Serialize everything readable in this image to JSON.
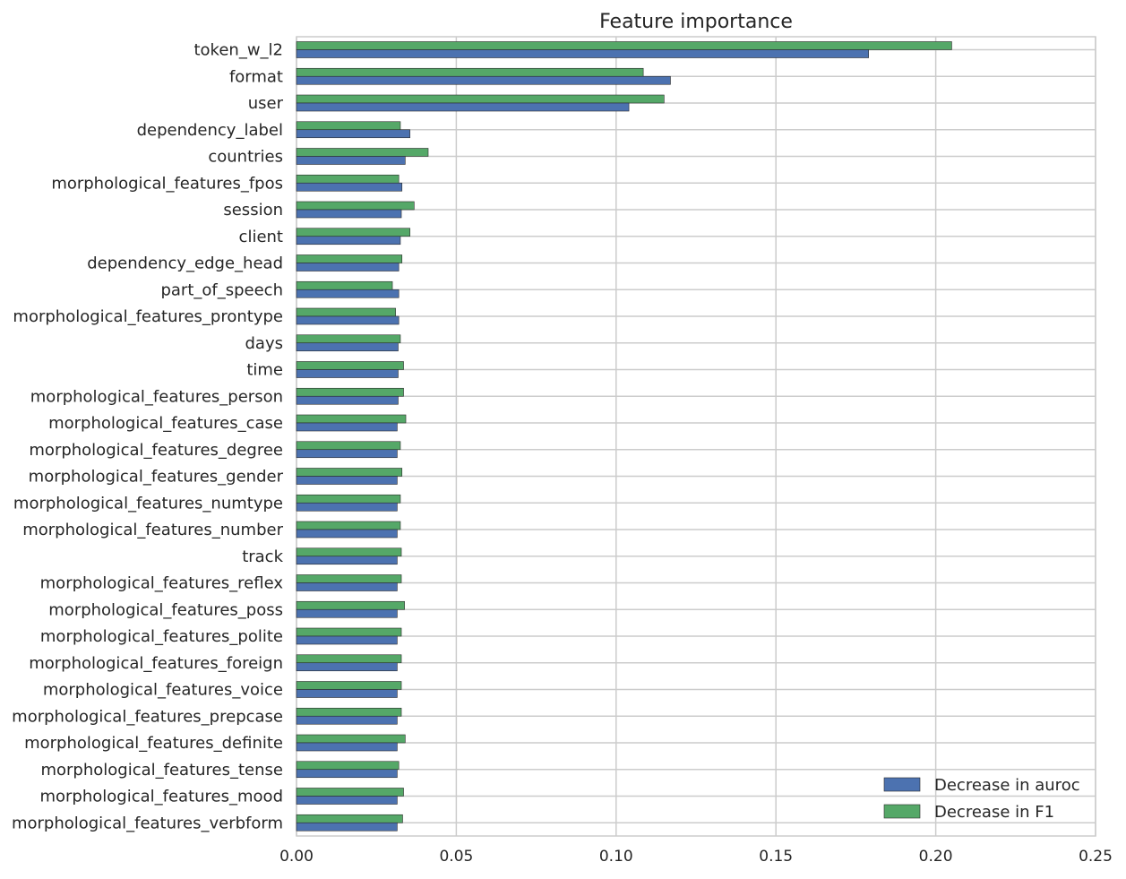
{
  "chart_data": {
    "type": "bar",
    "orientation": "horizontal",
    "title": "Feature importance",
    "xlabel": "",
    "ylabel": "",
    "xlim": [
      0,
      0.25
    ],
    "xticks": [
      "0.00",
      "0.05",
      "0.10",
      "0.15",
      "0.20",
      "0.25"
    ],
    "grid": true,
    "legend_position": "lower-right",
    "categories": [
      "token_w_l2",
      "format",
      "user",
      "dependency_label",
      "countries",
      "morphological_features_fpos",
      "session",
      "client",
      "dependency_edge_head",
      "part_of_speech",
      "morphological_features_prontype",
      "days",
      "time",
      "morphological_features_person",
      "morphological_features_case",
      "morphological_features_degree",
      "morphological_features_gender",
      "morphological_features_numtype",
      "morphological_features_number",
      "track",
      "morphological_features_reflex",
      "morphological_features_poss",
      "morphological_features_polite",
      "morphological_features_foreign",
      "morphological_features_voice",
      "morphological_features_prepcase",
      "morphological_features_definite",
      "morphological_features_tense",
      "morphological_features_mood",
      "morphological_features_verbform"
    ],
    "series": [
      {
        "name": "Decrease in auroc",
        "color": "#4c72b0",
        "values": [
          0.179,
          0.117,
          0.104,
          0.0355,
          0.034,
          0.033,
          0.0328,
          0.0325,
          0.032,
          0.032,
          0.032,
          0.0318,
          0.0318,
          0.0318,
          0.0315,
          0.0315,
          0.0315,
          0.0315,
          0.0315,
          0.0315,
          0.0315,
          0.0315,
          0.0315,
          0.0315,
          0.0315,
          0.0315,
          0.0315,
          0.0315,
          0.0315,
          0.0315
        ]
      },
      {
        "name": "Decrease in F1",
        "color": "#55a868",
        "values": [
          0.205,
          0.1085,
          0.115,
          0.0325,
          0.0412,
          0.032,
          0.0368,
          0.0355,
          0.033,
          0.03,
          0.031,
          0.0325,
          0.0335,
          0.0335,
          0.0342,
          0.0325,
          0.033,
          0.0325,
          0.0325,
          0.0328,
          0.0328,
          0.0338,
          0.0328,
          0.0328,
          0.0328,
          0.0328,
          0.034,
          0.032,
          0.0335,
          0.0332
        ]
      }
    ]
  }
}
